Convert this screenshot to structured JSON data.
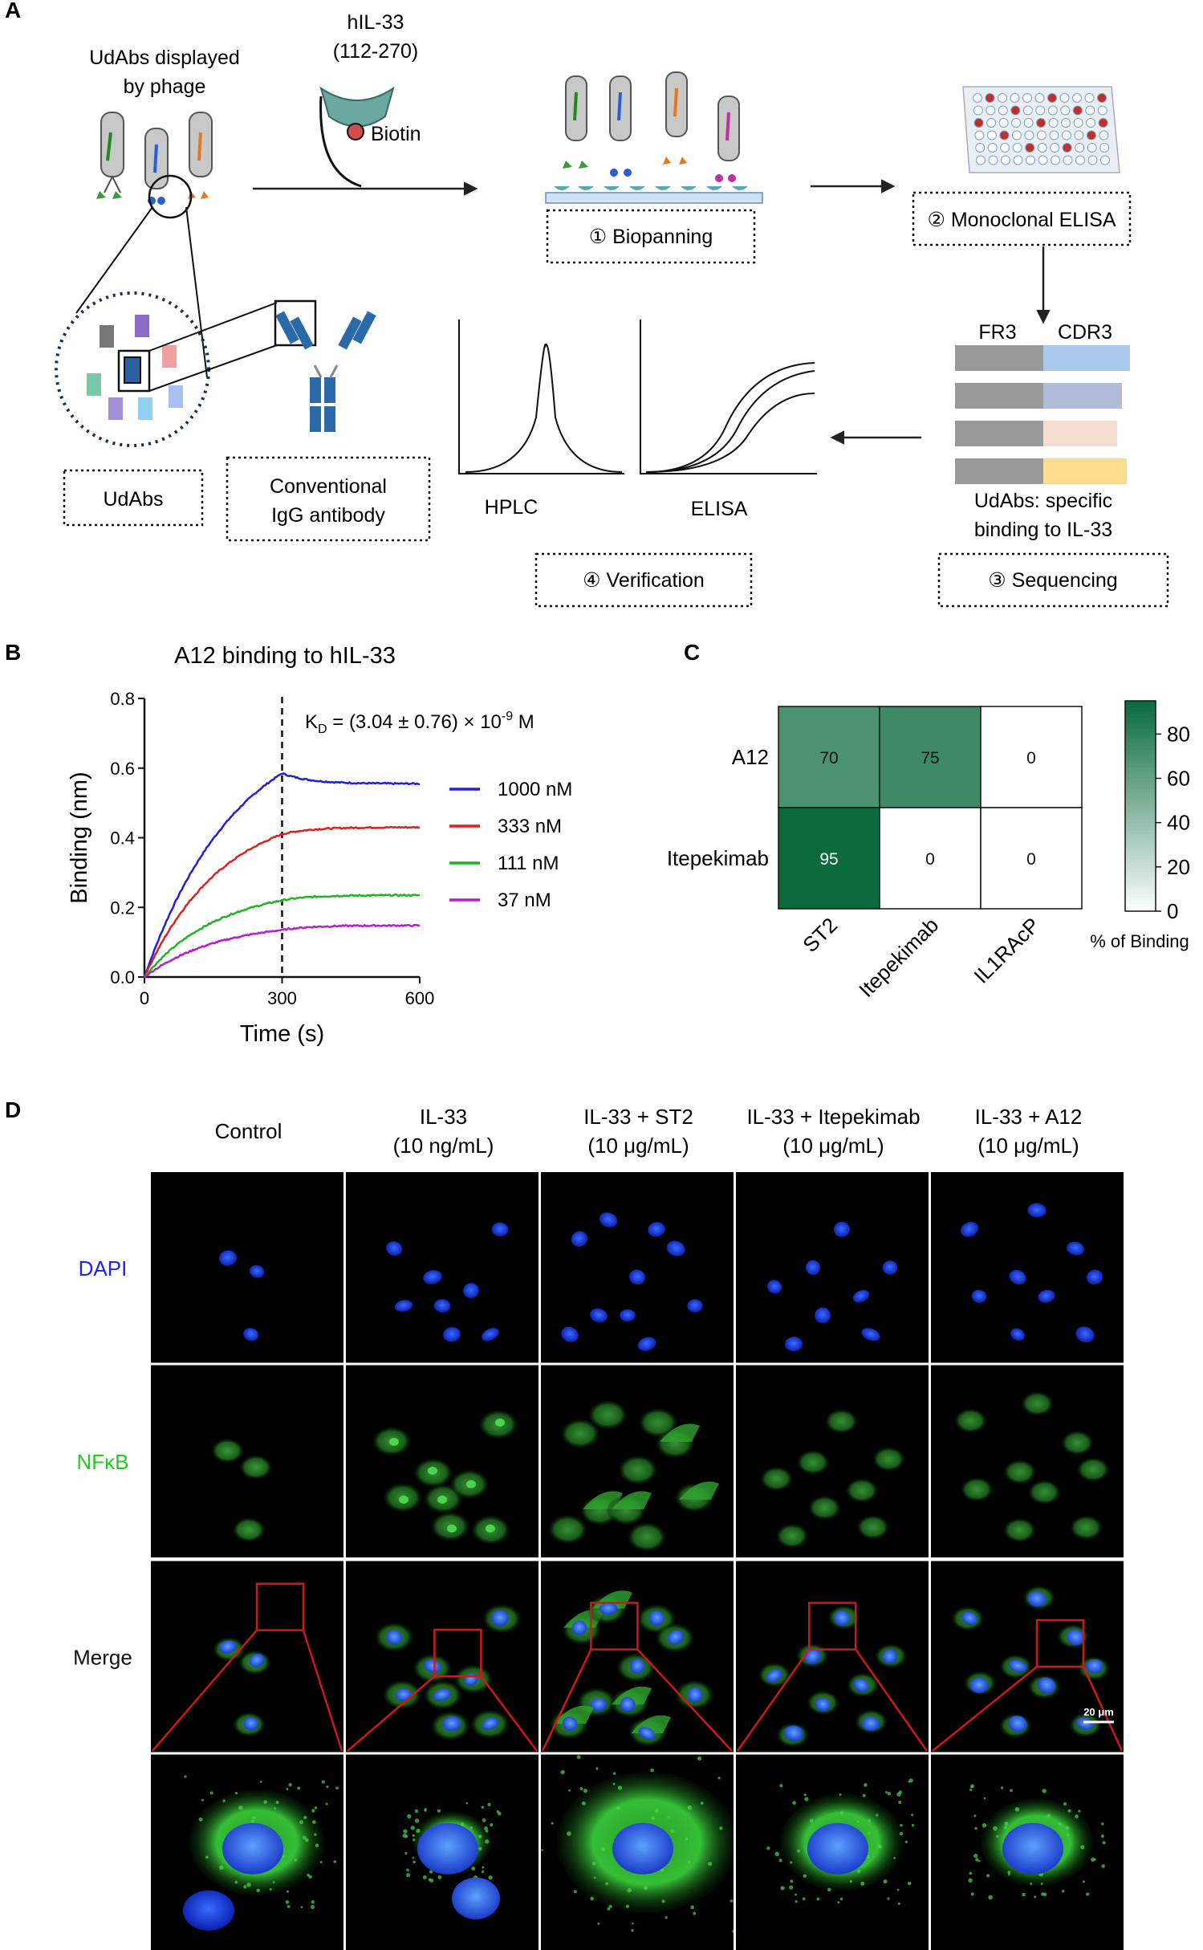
{
  "panel_a": {
    "letter": "A",
    "phage_label_1": "UdAbs displayed",
    "phage_label_2": "by phage",
    "antigen_1": "hIL-33",
    "antigen_2": "(112-270)",
    "biotin": "Biotin",
    "step1": "① Biopanning",
    "step2": "② Monoclonal ELISA",
    "step3": "③ Sequencing",
    "step4": "④ Verification",
    "udabs_box": "UdAbs",
    "igg_1": "Conventional",
    "igg_2": "IgG antibody",
    "hplc": "HPLC",
    "elisa": "ELISA",
    "fr3": "FR3",
    "cdr3": "CDR3",
    "seq_note_1": "UdAbs: specific",
    "seq_note_2": "binding to IL-33"
  },
  "panel_b": {
    "letter": "B",
    "chart_data": {
      "type": "line",
      "title": "A12 binding to hIL-33",
      "xlabel": "Time (s)",
      "ylabel": "Binding (nm)",
      "xlim": [
        0,
        600
      ],
      "ylim": [
        0,
        0.8
      ],
      "xticks": [
        "0",
        "300",
        "600"
      ],
      "yticks": [
        "0.0",
        "0.2",
        "0.4",
        "0.6",
        "0.8"
      ],
      "annotation_kd": "(3.04 ± 0.76) × 10",
      "annotation_kd_prefix": "K",
      "annotation_kd_sub": "D",
      "annotation_kd_eq": "=",
      "annotation_kd_exp": "-9",
      "annotation_kd_unit": "M",
      "dashed_line_x": 300,
      "series": [
        {
          "name": "1000 nM",
          "color": "#1f1fe0",
          "assoc_end": 0.585,
          "diss_end": 0.555,
          "tau": 200
        },
        {
          "name": "333 nM",
          "color": "#e01f1f",
          "assoc_end": 0.41,
          "diss_end": 0.43,
          "tau": 170
        },
        {
          "name": "111 nM",
          "color": "#1fb51f",
          "assoc_end": 0.22,
          "diss_end": 0.235,
          "tau": 160
        },
        {
          "name": "37 nM",
          "color": "#b51fd0",
          "assoc_end": 0.135,
          "diss_end": 0.148,
          "tau": 160
        }
      ]
    }
  },
  "panel_c": {
    "letter": "C",
    "chart_data": {
      "type": "heatmap",
      "rows": [
        "A12",
        "Itepekimab"
      ],
      "columns": [
        "ST2",
        "Itepekimab",
        "IL1RAcP"
      ],
      "values": [
        [
          70,
          75,
          0
        ],
        [
          95,
          0,
          0
        ]
      ],
      "colorbar_ticks": [
        "0",
        "20",
        "40",
        "60",
        "80"
      ],
      "colorbar_range": [
        0,
        95
      ],
      "colorbar_label": "% of Binding",
      "color_max": "#0b6b3f"
    }
  },
  "panel_d": {
    "letter": "D",
    "columns": [
      {
        "line1": "Control",
        "line2": ""
      },
      {
        "line1": "IL-33",
        "line2": "(10 ng/mL)"
      },
      {
        "line1": "IL-33 + ST2",
        "line2": "(10 μg/mL)"
      },
      {
        "line1": "IL-33 + Itepekimab",
        "line2": "(10 μg/mL)"
      },
      {
        "line1": "IL-33 + A12",
        "line2": "(10 μg/mL)"
      }
    ],
    "rows": [
      {
        "label": "DAPI",
        "color": "#2020ff"
      },
      {
        "label": "NFκB",
        "color": "#22cc22"
      },
      {
        "label": "Merge",
        "color": "#111111"
      }
    ],
    "scale_bar": "20 μm"
  }
}
